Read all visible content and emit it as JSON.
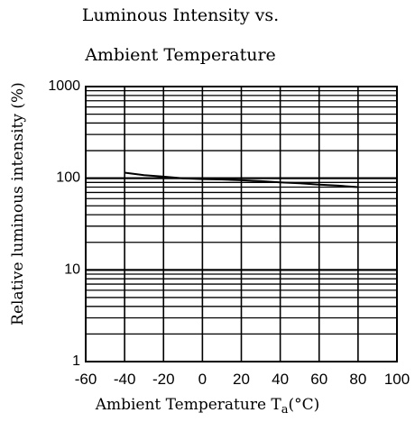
{
  "chart_data": {
    "type": "line",
    "title_line1": "Luminous Intensity vs.",
    "title_line2": "Ambient Temperature",
    "ylabel": "Relative luminous intensity (%)",
    "xlabel": "Ambient Temperature Ta(°C)",
    "xlabel_main": "Ambient Temperature T",
    "xlabel_sub": "a",
    "xlabel_unit": "(°C)",
    "y_scale": "log",
    "ylim": [
      1,
      1000
    ],
    "xlim": [
      -60,
      100
    ],
    "grid": true,
    "x_ticks": [
      -60,
      -40,
      -20,
      0,
      20,
      40,
      60,
      80,
      100
    ],
    "x_tick_labels": [
      "-60",
      "-40",
      "-20",
      "0",
      "20",
      "40",
      "60",
      "80",
      "100"
    ],
    "y_ticks": [
      1,
      10,
      100,
      1000
    ],
    "y_tick_labels": [
      "1",
      "10",
      "100",
      "1000"
    ],
    "series": [
      {
        "x": [
          -40,
          -30,
          -20,
          -10,
          0,
          10,
          20,
          30,
          40,
          50,
          60,
          70,
          80
        ],
        "y": [
          115,
          108,
          104,
          100,
          98,
          97,
          95,
          93,
          90,
          88,
          85,
          83,
          80
        ]
      }
    ]
  }
}
